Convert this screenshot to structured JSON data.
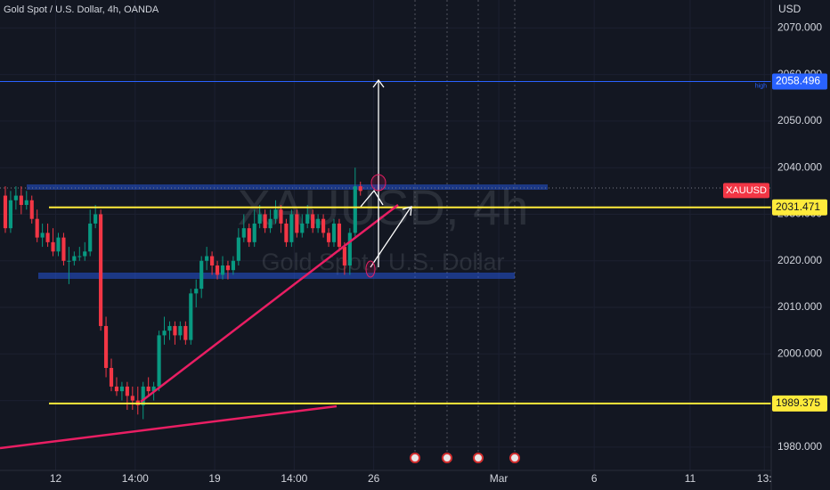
{
  "header": {
    "title": "Gold Spot / U.S. Dollar, 4h, OANDA"
  },
  "chart_data": {
    "type": "candlestick",
    "watermark_symbol": "XAUUSD, 4h",
    "watermark_description": "Gold Spot / U.S. Dollar",
    "currency": "USD",
    "symbol_label": "XAUUSD",
    "up_color": "#089981",
    "down_color": "#f23645",
    "open": [
      2034,
      2027,
      2033,
      2034,
      2032,
      2033,
      2029,
      2025,
      2026,
      2024,
      2022,
      2025,
      2020,
      2020,
      2021,
      2021,
      2022,
      2028,
      2030,
      2006,
      1997,
      1993,
      1992,
      1993,
      1991,
      1990,
      1989,
      1993,
      1992,
      1993,
      2004,
      2005,
      2006,
      2004,
      2006,
      2003,
      2013,
      2014,
      2020,
      2021,
      2019,
      2017,
      2019,
      2018,
      2020,
      2025,
      2027,
      2024,
      2028,
      2030,
      2027,
      2029,
      2031,
      2028,
      2024,
      2030,
      2026,
      2028,
      2030,
      2027,
      2029,
      2026,
      2024,
      2028,
      2023,
      2019,
      2026,
      2036
    ],
    "high": [
      2036,
      2035,
      2036,
      2036,
      2035,
      2034,
      2031,
      2028,
      2028,
      2027,
      2026,
      2026,
      2023,
      2022,
      2023,
      2024,
      2031,
      2032,
      2031,
      2008,
      1999,
      1995,
      1994,
      1994,
      1993,
      1993,
      1994,
      1995,
      1994,
      2005,
      2008,
      2007,
      2007,
      2007,
      2007,
      2014,
      2016,
      2021,
      2023,
      2022,
      2020,
      2021,
      2020,
      2021,
      2027,
      2030,
      2028,
      2031,
      2032,
      2031,
      2031,
      2033,
      2032,
      2029,
      2031,
      2031,
      2030,
      2032,
      2031,
      2030,
      2030,
      2027,
      2029,
      2029,
      2024,
      2027,
      2040,
      2037
    ],
    "low": [
      2026,
      2026,
      2031,
      2030,
      2031,
      2028,
      2024,
      2023,
      2023,
      2021,
      2021,
      2019,
      2015,
      2019,
      2020,
      2020,
      2021,
      2027,
      2005,
      1995,
      1992,
      1991,
      1990,
      1988,
      1988,
      1987,
      1986,
      1991,
      1990,
      1992,
      2002,
      2003,
      2002,
      2003,
      2002,
      2002,
      2010,
      2012,
      2018,
      2017,
      2016,
      2016,
      2016,
      2017,
      2019,
      2024,
      2023,
      2023,
      2027,
      2026,
      2026,
      2028,
      2026,
      2023,
      2023,
      2025,
      2025,
      2027,
      2026,
      2026,
      2025,
      2023,
      2023,
      2022,
      2017,
      2017,
      2025,
      2034
    ],
    "close": [
      2027,
      2033,
      2034,
      2032,
      2033,
      2029,
      2025,
      2026,
      2024,
      2022,
      2025,
      2020,
      2020,
      2021,
      2021,
      2022,
      2028,
      2030,
      2006,
      1997,
      1993,
      1992,
      1993,
      1991,
      1990,
      1989,
      1993,
      1992,
      1993,
      2004,
      2005,
      2006,
      2004,
      2006,
      2003,
      2013,
      2014,
      2020,
      2021,
      2019,
      2017,
      2019,
      2018,
      2020,
      2025,
      2027,
      2024,
      2028,
      2030,
      2027,
      2029,
      2031,
      2028,
      2024,
      2030,
      2026,
      2028,
      2030,
      2027,
      2029,
      2026,
      2024,
      2028,
      2023,
      2019,
      2026,
      2036,
      2035
    ],
    "xlim": [
      0,
      145
    ],
    "xticks": [
      {
        "value": 10,
        "label": "12"
      },
      {
        "value": 25,
        "label": "14:00"
      },
      {
        "value": 40,
        "label": "19"
      },
      {
        "value": 55,
        "label": "14:00"
      },
      {
        "value": 70,
        "label": "26"
      },
      {
        "value": 93.6,
        "label": "Mar"
      },
      {
        "value": 111.6,
        "label": "6"
      },
      {
        "value": 129.7,
        "label": "11"
      },
      {
        "value": 143.7,
        "label": "13:"
      }
    ],
    "ylim": [
      1975,
      2076
    ],
    "yticks": [
      {
        "value": 2070,
        "label": "2070.000"
      },
      {
        "value": 2060,
        "label": "2060.000"
      },
      {
        "value": 2050,
        "label": "2050.000"
      },
      {
        "value": 2040,
        "label": "2040.000"
      },
      {
        "value": 2030,
        "label": "2030.000"
      },
      {
        "value": 2020,
        "label": "2020.000"
      },
      {
        "value": 2010,
        "label": "2010.000"
      },
      {
        "value": 2000,
        "label": "2000.000"
      },
      {
        "value": 1990,
        "label": "1990.000"
      },
      {
        "value": 1980,
        "label": "1980.000"
      }
    ],
    "price_labels": [
      {
        "name": "high",
        "value": 2058.496,
        "color": "#2962ff"
      },
      {
        "value": 2031.471,
        "color": "#ffeb3b"
      },
      {
        "value": 1989.375,
        "color": "#ffeb3b"
      }
    ]
  }
}
